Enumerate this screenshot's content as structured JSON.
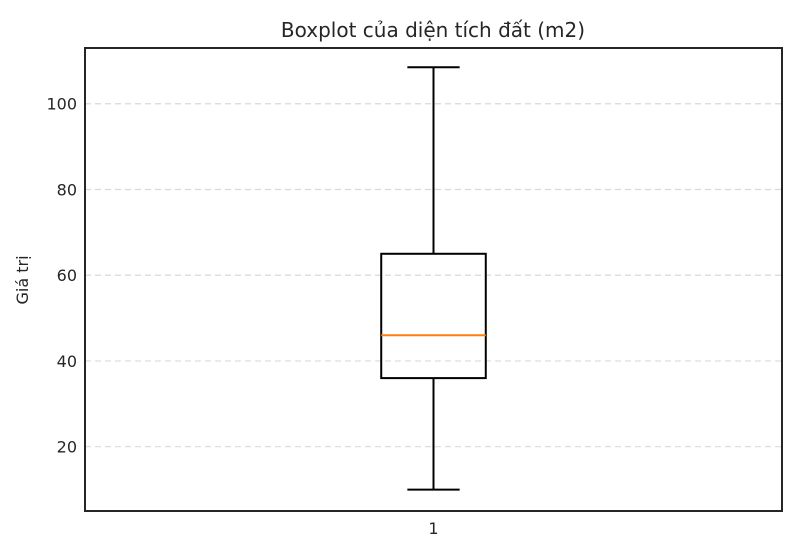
{
  "chart_data": {
    "type": "boxplot",
    "title": "Boxplot của diện tích đất (m2)",
    "xlabel": "",
    "ylabel": "Giá trị",
    "categories": [
      "1"
    ],
    "boxes": [
      {
        "category": "1",
        "whisker_low": 10,
        "q1": 36,
        "median": 46,
        "q3": 65,
        "whisker_high": 108.5
      }
    ],
    "ylim": [
      5,
      113
    ],
    "yticks": [
      20,
      40,
      60,
      80,
      100
    ],
    "grid": {
      "axis": "y",
      "style": "dashed",
      "color": "#d9d9d9"
    },
    "colors": {
      "box": "#000000",
      "median": "#ff7f0e",
      "frame": "#262626"
    }
  }
}
